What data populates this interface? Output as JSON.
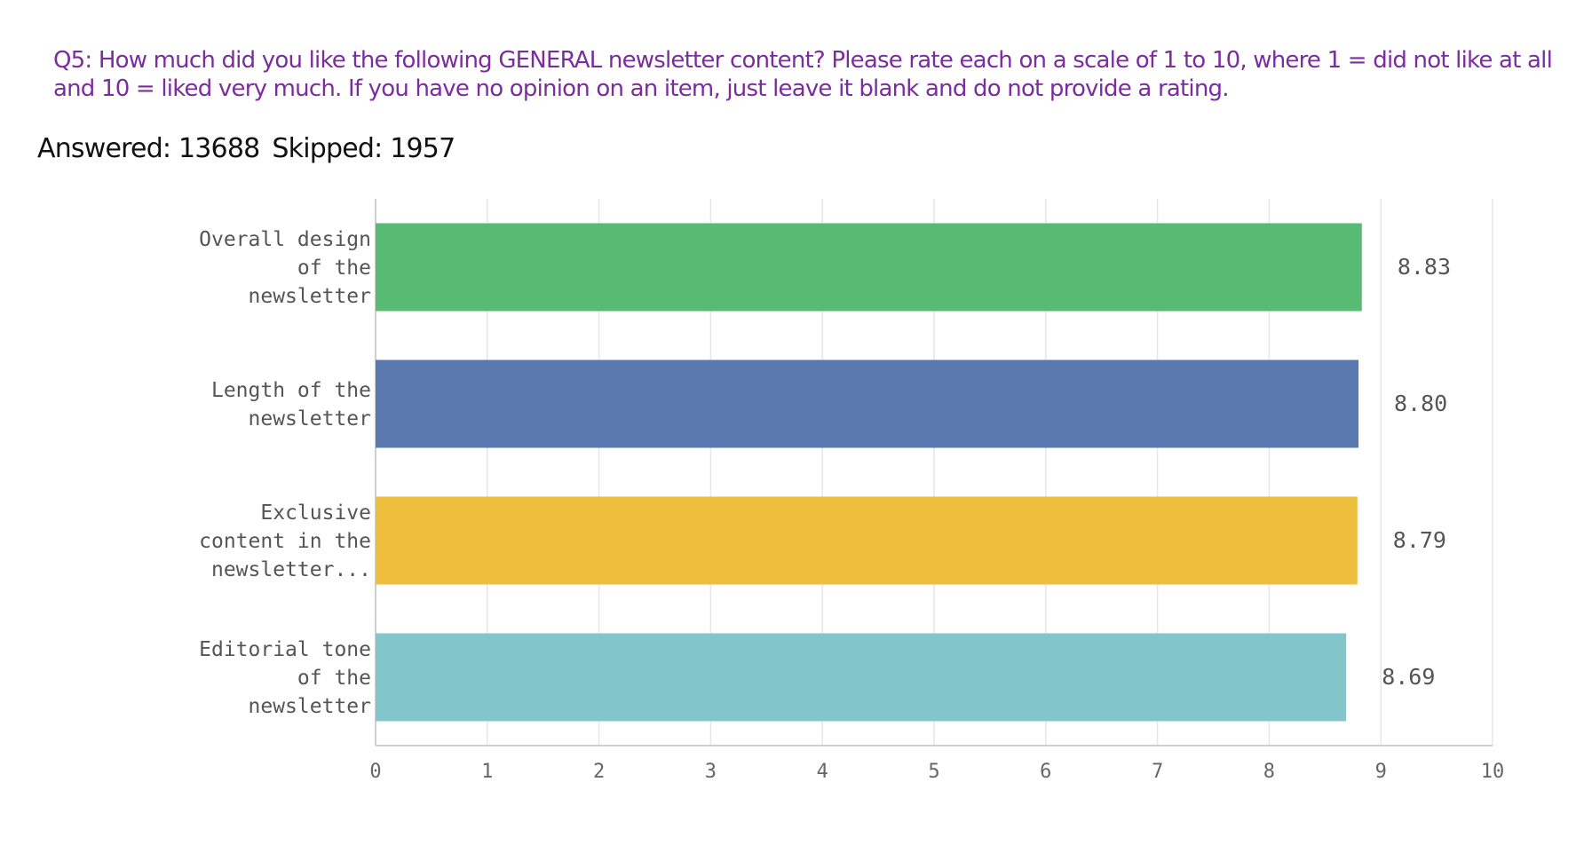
{
  "question": {
    "text": "Q5: How much did you like the following GENERAL newsletter content? Please rate each on a scale of 1 to 10, where 1 = did not like at all and 10 = liked very much. If you have no opinion on an item, just leave it blank and do not provide a rating."
  },
  "stats": {
    "answered": "Answered: 13688",
    "skipped": "Skipped: 1957"
  },
  "chart_data": {
    "type": "bar",
    "orientation": "horizontal",
    "categories": [
      [
        "Overall design",
        "of the",
        "newsletter"
      ],
      [
        "Length of the",
        "newsletter"
      ],
      [
        "Exclusive",
        "content in the",
        "newsletter..."
      ],
      [
        "Editorial tone",
        "of the",
        "newsletter"
      ]
    ],
    "values": [
      8.83,
      8.8,
      8.79,
      8.69
    ],
    "value_labels": [
      "8.83",
      "8.80",
      "8.79",
      "8.69"
    ],
    "colors": [
      "#57bb73",
      "#5a79ae",
      "#edbd3c",
      "#82c5cb"
    ],
    "xlim": [
      0,
      10
    ],
    "ticks": [
      "0",
      "1",
      "2",
      "3",
      "4",
      "5",
      "6",
      "7",
      "8",
      "9",
      "10"
    ],
    "grid": true,
    "legend": "none"
  }
}
